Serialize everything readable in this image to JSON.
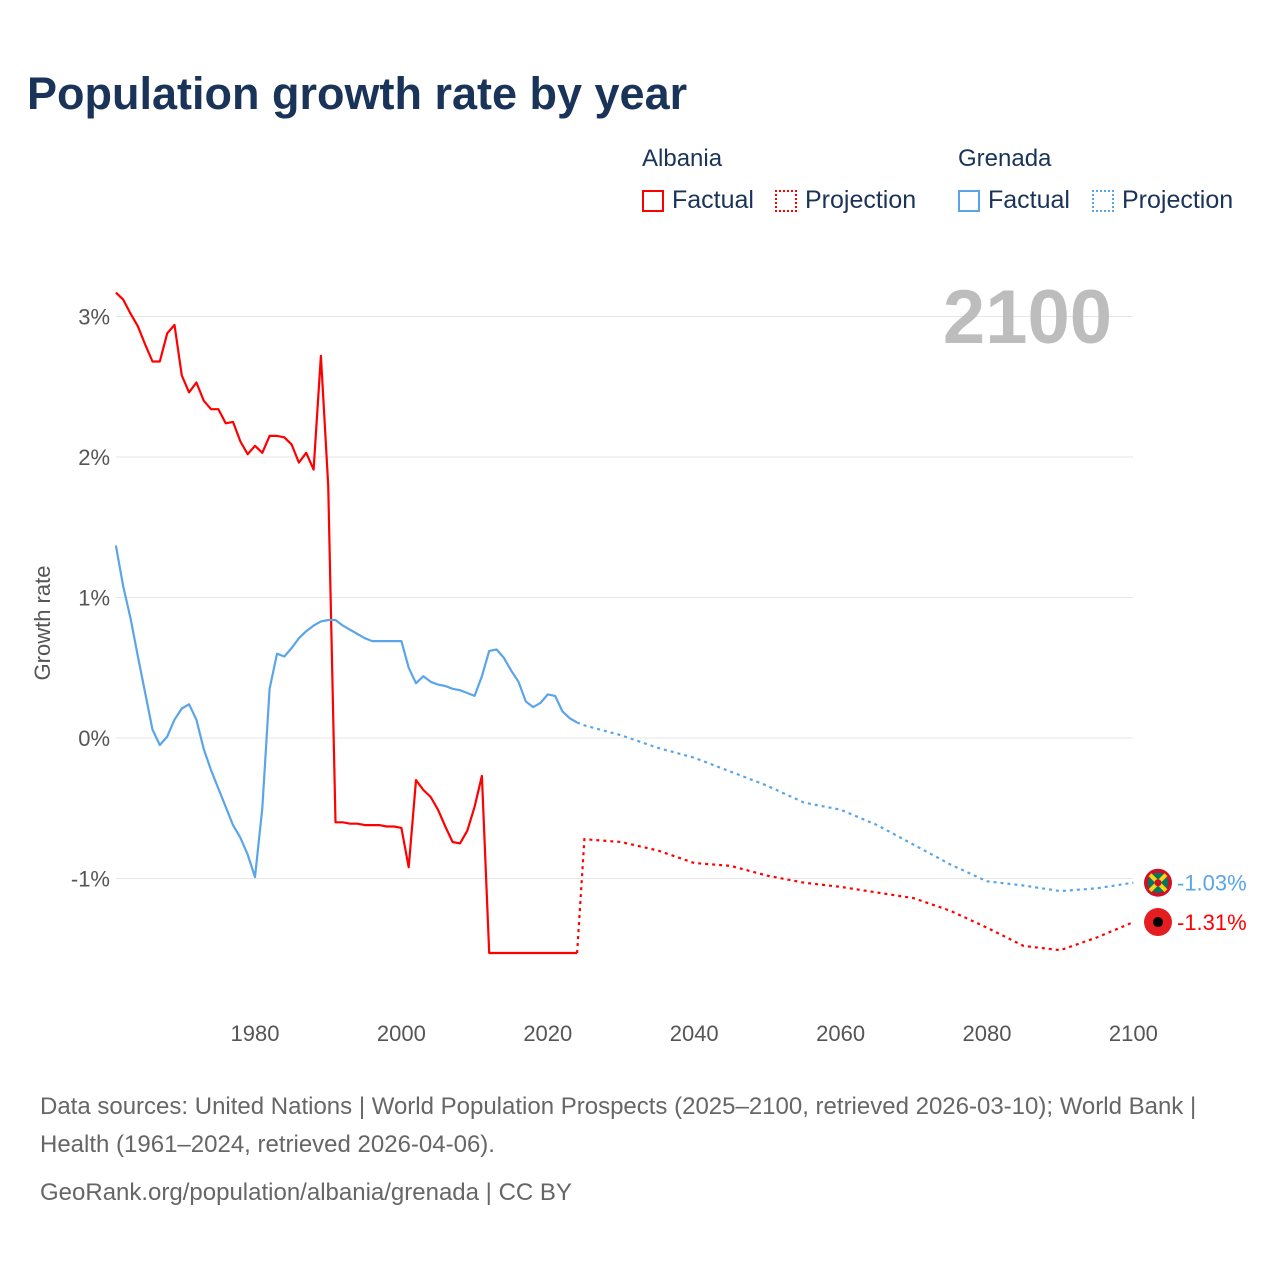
{
  "chart_data": {
    "type": "line",
    "title": "Population growth rate by year",
    "ylabel": "Growth rate",
    "xlabel": "",
    "xlim": [
      1961,
      2100
    ],
    "ylim": [
      -2,
      3.3
    ],
    "x_ticks": [
      1980,
      2000,
      2020,
      2040,
      2060,
      2080,
      2100
    ],
    "x_tick_labels": [
      "1980",
      "2000",
      "2020",
      "2040",
      "2060",
      "2080",
      "2100"
    ],
    "y_ticks": [
      3,
      2,
      1,
      0,
      -1
    ],
    "y_tick_labels": [
      "3%",
      "2%",
      "1%",
      "0%",
      "-1%"
    ],
    "grid": true,
    "year_label": "2100",
    "legend_placement": "top-right",
    "legend": {
      "groups": [
        {
          "name": "Albania",
          "factual": "Factual",
          "projection": "Projection",
          "color": "#ff0000"
        },
        {
          "name": "Grenada",
          "factual": "Factual",
          "projection": "Projection",
          "color": "#5aa5e8"
        }
      ]
    },
    "series": [
      {
        "name": "Albania",
        "color": "#ff0000",
        "end_label": "-1.31%",
        "factual_start": 1961,
        "factual": [
          3.17,
          3.12,
          3.02,
          2.93,
          2.8,
          2.68,
          2.68,
          2.88,
          2.94,
          2.58,
          2.46,
          2.53,
          2.4,
          2.34,
          2.34,
          2.24,
          2.25,
          2.11,
          2.02,
          2.08,
          2.03,
          2.15,
          2.15,
          2.14,
          2.09,
          1.96,
          2.03,
          1.91,
          2.72,
          1.8,
          -0.6,
          -0.6,
          -0.61,
          -0.61,
          -0.62,
          -0.62,
          -0.62,
          -0.63,
          -0.63,
          -0.64,
          -0.92,
          -0.3,
          -0.37,
          -0.42,
          -0.51,
          -0.63,
          -0.74,
          -0.75,
          -0.66,
          -0.49,
          -0.27,
          -1.53,
          -1.53,
          -1.53,
          -1.53,
          -1.53,
          -1.53,
          -1.53,
          -1.53,
          -1.53,
          -1.53,
          -1.53,
          -1.53,
          -1.53
        ],
        "projection": [
          [
            2025,
            -0.72
          ],
          [
            2030,
            -0.74
          ],
          [
            2035,
            -0.8
          ],
          [
            2040,
            -0.89
          ],
          [
            2045,
            -0.91
          ],
          [
            2050,
            -0.98
          ],
          [
            2055,
            -1.03
          ],
          [
            2060,
            -1.06
          ],
          [
            2065,
            -1.1
          ],
          [
            2070,
            -1.14
          ],
          [
            2075,
            -1.23
          ],
          [
            2080,
            -1.35
          ],
          [
            2085,
            -1.48
          ],
          [
            2090,
            -1.51
          ],
          [
            2095,
            -1.42
          ],
          [
            2100,
            -1.31
          ]
        ]
      },
      {
        "name": "Grenada",
        "color": "#5aa5e8",
        "end_label": "-1.03%",
        "factual_start": 1961,
        "factual": [
          1.37,
          1.08,
          0.85,
          0.58,
          0.32,
          0.06,
          -0.05,
          0.01,
          0.13,
          0.21,
          0.24,
          0.13,
          -0.08,
          -0.23,
          -0.36,
          -0.49,
          -0.62,
          -0.71,
          -0.83,
          -0.99,
          -0.5,
          0.35,
          0.6,
          0.58,
          0.64,
          0.71,
          0.76,
          0.8,
          0.83,
          0.84,
          0.84,
          0.8,
          0.77,
          0.74,
          0.71,
          0.69,
          0.69,
          0.69,
          0.69,
          0.69,
          0.5,
          0.39,
          0.44,
          0.4,
          0.38,
          0.37,
          0.35,
          0.34,
          0.32,
          0.3,
          0.44,
          0.62,
          0.63,
          0.57,
          0.48,
          0.4,
          0.26,
          0.22,
          0.25,
          0.31,
          0.3,
          0.19,
          0.14,
          0.11
        ],
        "projection": [
          [
            2025,
            0.09
          ],
          [
            2030,
            0.02
          ],
          [
            2035,
            -0.07
          ],
          [
            2040,
            -0.14
          ],
          [
            2045,
            -0.24
          ],
          [
            2050,
            -0.34
          ],
          [
            2055,
            -0.46
          ],
          [
            2060,
            -0.51
          ],
          [
            2065,
            -0.62
          ],
          [
            2070,
            -0.76
          ],
          [
            2075,
            -0.9
          ],
          [
            2080,
            -1.02
          ],
          [
            2085,
            -1.05
          ],
          [
            2090,
            -1.09
          ],
          [
            2095,
            -1.07
          ],
          [
            2100,
            -1.03
          ]
        ]
      }
    ]
  },
  "footer": {
    "sources": "Data sources: United Nations | World Population Prospects (2025–2100, retrieved 2026-03-10); World Bank | Health (1961–2024, retrieved 2026-04-06).",
    "credit": "GeoRank.org/population/albania/grenada | CC BY"
  }
}
